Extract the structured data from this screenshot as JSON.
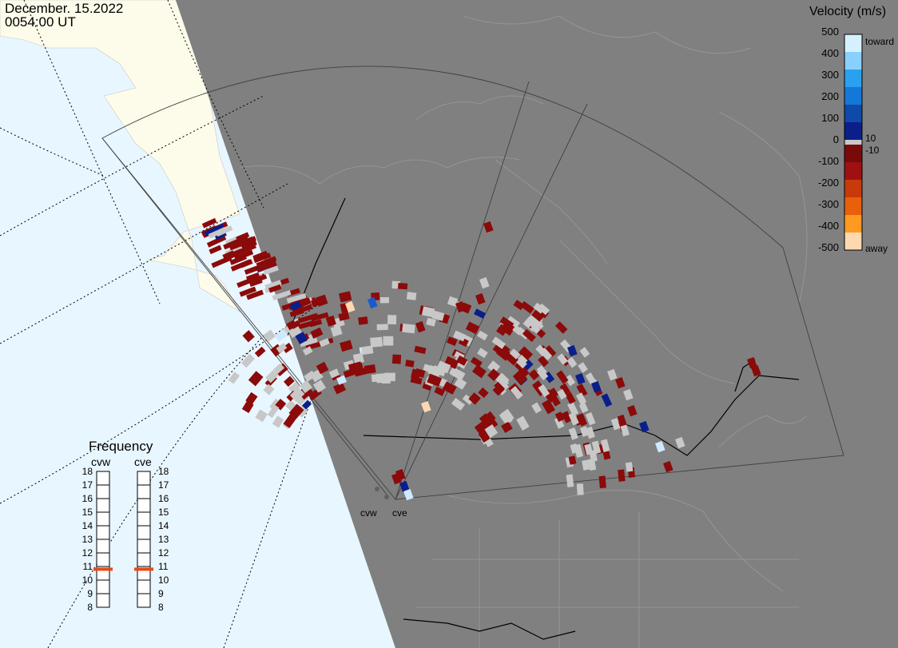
{
  "header": {
    "date": "December. 15.2022",
    "time": "0054:00 UT"
  },
  "colorbar": {
    "title": "Velocity (m/s)",
    "ticks": [
      "500",
      "400",
      "300",
      "200",
      "100",
      "0",
      "-100",
      "-200",
      "-300",
      "-400",
      "-500"
    ],
    "mid_labels": [
      "10",
      "-10"
    ],
    "toward_label": "toward",
    "away_label": "away",
    "colors": {
      "toward": [
        "#d6f0ff",
        "#8ad0ff",
        "#2aa0f0",
        "#1478d8",
        "#0f4aa8",
        "#0a1f8a"
      ],
      "away": [
        "#7a0a0a",
        "#a01010",
        "#c83a0a",
        "#e8600a",
        "#ff9a20",
        "#ffd8b0"
      ]
    }
  },
  "frequency": {
    "title": "Frequency",
    "radars": [
      "cvw",
      "cve"
    ],
    "scale": [
      "18",
      "17",
      "16",
      "15",
      "14",
      "13",
      "12",
      "11",
      "10",
      "9",
      "8"
    ],
    "current_mhz": [
      10.8,
      10.8
    ],
    "marker_color": "#e84a1a"
  },
  "radar_sites": [
    "cvw",
    "cve"
  ],
  "map_colors": {
    "ocean": "#e8f6ff",
    "land_day": "#fdfbea",
    "land_night": "#808080",
    "ground_scatter": "#c8c8c8"
  }
}
